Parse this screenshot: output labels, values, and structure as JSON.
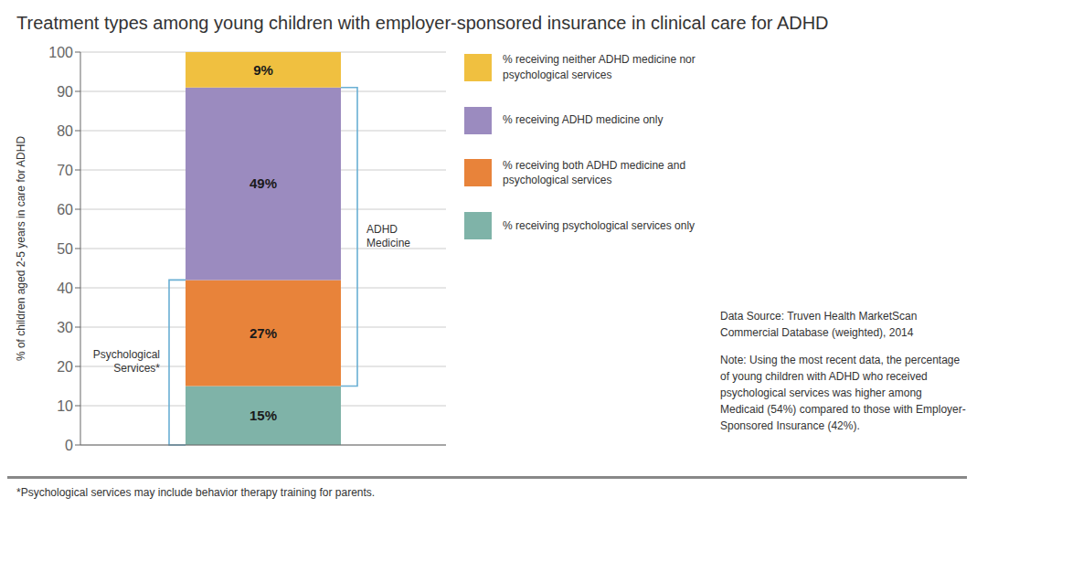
{
  "chart_data": {
    "type": "bar",
    "title": "Treatment types among young children with employer-sponsored insurance in clinical care for ADHD",
    "stacked": true,
    "data_labels": true,
    "grid": true,
    "legend": "right",
    "tick_labels": "y",
    "categories": [
      null
    ],
    "ylabel": "% of children aged 2-5 years in care for ADHD",
    "ylim": [
      0,
      100
    ],
    "yticks": [
      0,
      10,
      20,
      30,
      40,
      50,
      60,
      70,
      80,
      90,
      100
    ],
    "series": [
      {
        "name": "% receiving psychological services only",
        "color": "#7fb3a8",
        "values": [
          15
        ],
        "value_labels": [
          "15%"
        ]
      },
      {
        "name": "% receiving both ADHD medicine and\npsychological services",
        "color": "#e8833a",
        "values": [
          27
        ],
        "value_labels": [
          "27%"
        ]
      },
      {
        "name": "% receiving ADHD medicine only",
        "color": "#9b8bbf",
        "values": [
          49
        ],
        "value_labels": [
          "49%"
        ]
      },
      {
        "name": "% receiving neither ADHD medicine nor\npsychological services",
        "color": "#f0c040",
        "values": [
          9
        ],
        "value_labels": [
          "9%"
        ]
      }
    ],
    "annotations": [
      {
        "text": "Psychological\nServices*",
        "from": 0,
        "to": 42,
        "color": "#6ab0d4"
      },
      {
        "text": "ADHD\nMedicine",
        "from": 15,
        "to": 91,
        "color": "#6ab0d4"
      }
    ],
    "source": "Data Source: Truven Health MarketScan\nCommercial Database (weighted), 2014",
    "note": "Note: Using the most recent data, the percentage\nof young children with ADHD who received\npsychological services was higher among\nMedicaid (54%) compared to those with Employer-\nSponsored Insurance (42%).",
    "footnote": "*Psychological services may include behavior therapy training for parents."
  }
}
